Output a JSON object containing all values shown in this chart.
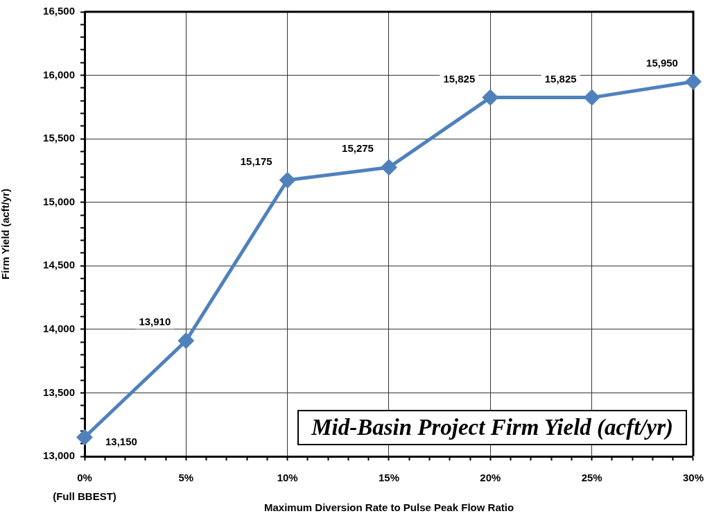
{
  "chart_data": {
    "type": "line",
    "title": "Mid-Basin Project Firm Yield (acft/yr)",
    "xlabel": "Maximum Diversion Rate to Pulse Peak Flow Ratio",
    "ylabel": "Firm Yield (acft/yr)",
    "x": [
      0,
      5,
      10,
      15,
      20,
      25,
      30
    ],
    "values": [
      13150,
      13910,
      15175,
      15275,
      15825,
      15825,
      15950
    ],
    "value_labels": [
      "13,150",
      "13,910",
      "15,175",
      "15,275",
      "15,825",
      "15,825",
      "15,950"
    ],
    "color": "#4f81bd",
    "marker": "diamond",
    "line_style": "solid",
    "grid": true,
    "xlim": [
      0,
      30
    ],
    "xticks": [
      {
        "value": 0,
        "label": "0%\n(Full BBEST)"
      },
      {
        "value": 1,
        "label": null
      },
      {
        "value": 2,
        "label": null
      },
      {
        "value": 3,
        "label": null
      },
      {
        "value": 4,
        "label": null
      },
      {
        "value": 5,
        "label": "5%"
      },
      {
        "value": 6,
        "label": null
      },
      {
        "value": 7,
        "label": null
      },
      {
        "value": 8,
        "label": null
      },
      {
        "value": 9,
        "label": null
      },
      {
        "value": 10,
        "label": "10%"
      },
      {
        "value": 11,
        "label": null
      },
      {
        "value": 12,
        "label": null
      },
      {
        "value": 13,
        "label": null
      },
      {
        "value": 14,
        "label": null
      },
      {
        "value": 15,
        "label": "15%"
      },
      {
        "value": 16,
        "label": null
      },
      {
        "value": 17,
        "label": null
      },
      {
        "value": 18,
        "label": null
      },
      {
        "value": 19,
        "label": null
      },
      {
        "value": 20,
        "label": "20%"
      },
      {
        "value": 21,
        "label": null
      },
      {
        "value": 22,
        "label": null
      },
      {
        "value": 23,
        "label": null
      },
      {
        "value": 24,
        "label": null
      },
      {
        "value": 25,
        "label": "25%"
      },
      {
        "value": 26,
        "label": null
      },
      {
        "value": 27,
        "label": null
      },
      {
        "value": 28,
        "label": null
      },
      {
        "value": 29,
        "label": null
      },
      {
        "value": 30,
        "label": "30%"
      }
    ],
    "ylim": [
      13000,
      16500
    ],
    "yticks": [
      {
        "value": 13000,
        "label": "13,000"
      },
      {
        "value": 13100,
        "label": null
      },
      {
        "value": 13200,
        "label": null
      },
      {
        "value": 13300,
        "label": null
      },
      {
        "value": 13400,
        "label": null
      },
      {
        "value": 13500,
        "label": "13,500"
      },
      {
        "value": 13600,
        "label": null
      },
      {
        "value": 13700,
        "label": null
      },
      {
        "value": 13800,
        "label": null
      },
      {
        "value": 13900,
        "label": null
      },
      {
        "value": 14000,
        "label": "14,000"
      },
      {
        "value": 14100,
        "label": null
      },
      {
        "value": 14200,
        "label": null
      },
      {
        "value": 14300,
        "label": null
      },
      {
        "value": 14400,
        "label": null
      },
      {
        "value": 14500,
        "label": "14,500"
      },
      {
        "value": 14600,
        "label": null
      },
      {
        "value": 14700,
        "label": null
      },
      {
        "value": 14800,
        "label": null
      },
      {
        "value": 14900,
        "label": null
      },
      {
        "value": 15000,
        "label": "15,000"
      },
      {
        "value": 15100,
        "label": null
      },
      {
        "value": 15200,
        "label": null
      },
      {
        "value": 15300,
        "label": null
      },
      {
        "value": 15400,
        "label": null
      },
      {
        "value": 15500,
        "label": "15,500"
      },
      {
        "value": 15600,
        "label": null
      },
      {
        "value": 15700,
        "label": null
      },
      {
        "value": 15800,
        "label": null
      },
      {
        "value": 15900,
        "label": null
      },
      {
        "value": 16000,
        "label": "16,000"
      },
      {
        "value": 16100,
        "label": null
      },
      {
        "value": 16200,
        "label": null
      },
      {
        "value": 16300,
        "label": null
      },
      {
        "value": 16400,
        "label": null
      },
      {
        "value": 16500,
        "label": "16,500"
      }
    ]
  }
}
